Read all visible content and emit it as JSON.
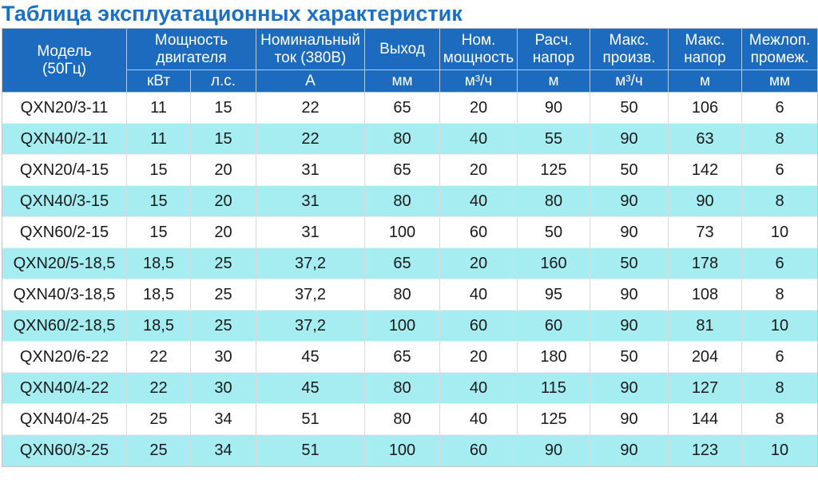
{
  "title": "Таблица эксплуатационных характеристик",
  "colors": {
    "title_text": "#1B6FC4",
    "header_bg": "#1C6BBF",
    "header_text": "#FFFFFF",
    "row_alt_bg": "#A5EDF1",
    "row_bg": "#FFFFFF",
    "body_text": "#1A1A1A"
  },
  "table": {
    "header": {
      "model": "Модель\n(50Гц)",
      "groups": [
        {
          "label": "Мощность\nдвигателя",
          "colspan": 2
        },
        {
          "label": "Номинальный\nток (380В)",
          "colspan": 1
        },
        {
          "label": "Выход",
          "colspan": 1
        },
        {
          "label": "Ном.\nмощность",
          "colspan": 1
        },
        {
          "label": "Расч.\nнапор",
          "colspan": 1
        },
        {
          "label": "Макс.\nпроизв.",
          "colspan": 1
        },
        {
          "label": "Макс.\nнапор",
          "colspan": 1
        },
        {
          "label": "Межлоп.\nпромеж.",
          "colspan": 1
        }
      ],
      "units": [
        "кВт",
        "л.с.",
        "А",
        "мм",
        "м³/ч",
        "м",
        "м³/ч",
        "м",
        "мм"
      ]
    },
    "rows": [
      {
        "model": "QXN20/3-11",
        "values": [
          "11",
          "15",
          "22",
          "65",
          "20",
          "90",
          "50",
          "106",
          "6"
        ]
      },
      {
        "model": "QXN40/2-11",
        "values": [
          "11",
          "15",
          "22",
          "80",
          "40",
          "55",
          "90",
          "63",
          "8"
        ]
      },
      {
        "model": "QXN20/4-15",
        "values": [
          "15",
          "20",
          "31",
          "65",
          "20",
          "125",
          "50",
          "142",
          "6"
        ]
      },
      {
        "model": "QXN40/3-15",
        "values": [
          "15",
          "20",
          "31",
          "80",
          "40",
          "80",
          "90",
          "90",
          "8"
        ]
      },
      {
        "model": "QXN60/2-15",
        "values": [
          "15",
          "20",
          "31",
          "100",
          "60",
          "50",
          "90",
          "73",
          "10"
        ]
      },
      {
        "model": "QXN20/5-18,5",
        "values": [
          "18,5",
          "25",
          "37,2",
          "65",
          "20",
          "160",
          "50",
          "178",
          "6"
        ]
      },
      {
        "model": "QXN40/3-18,5",
        "values": [
          "18,5",
          "25",
          "37,2",
          "80",
          "40",
          "95",
          "90",
          "108",
          "8"
        ]
      },
      {
        "model": "QXN60/2-18,5",
        "values": [
          "18,5",
          "25",
          "37,2",
          "100",
          "60",
          "60",
          "90",
          "81",
          "10"
        ]
      },
      {
        "model": "QXN20/6-22",
        "values": [
          "22",
          "30",
          "45",
          "65",
          "20",
          "180",
          "50",
          "204",
          "6"
        ]
      },
      {
        "model": "QXN40/4-22",
        "values": [
          "22",
          "30",
          "45",
          "80",
          "40",
          "115",
          "90",
          "127",
          "8"
        ]
      },
      {
        "model": "QXN40/4-25",
        "values": [
          "25",
          "34",
          "51",
          "80",
          "40",
          "125",
          "90",
          "144",
          "8"
        ]
      },
      {
        "model": "QXN60/3-25",
        "values": [
          "25",
          "34",
          "51",
          "100",
          "60",
          "90",
          "90",
          "123",
          "10"
        ]
      }
    ]
  }
}
